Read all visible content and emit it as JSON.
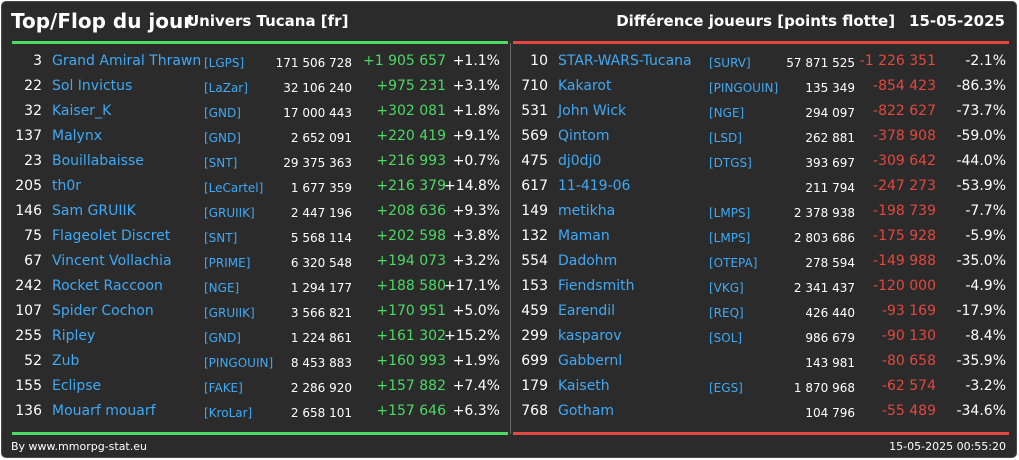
{
  "header": {
    "title": "Top/Flop du jour",
    "universe": "Univers Tucana [fr]",
    "metric": "Différence joueurs [points flotte]",
    "date": "15-05-2025"
  },
  "colors": {
    "background": "#2b2b2b",
    "top_accent": "#4cd964",
    "flop_accent": "#e2483f",
    "name_color": "#3fa9f5"
  },
  "top": [
    {
      "rank": "3",
      "name": "Grand Amiral Thrawn",
      "guild": "[LGPS]",
      "score": "171 506 728",
      "diff": "+1 905 657",
      "pct": "+1.1%"
    },
    {
      "rank": "22",
      "name": "Sol Invictus",
      "guild": "[LaZar]",
      "score": "32 106 240",
      "diff": "+975 231",
      "pct": "+3.1%"
    },
    {
      "rank": "32",
      "name": "Kaiser_K",
      "guild": "[GND]",
      "score": "17 000 443",
      "diff": "+302 081",
      "pct": "+1.8%"
    },
    {
      "rank": "137",
      "name": "Malynx",
      "guild": "[GND]",
      "score": "2 652 091",
      "diff": "+220 419",
      "pct": "+9.1%"
    },
    {
      "rank": "23",
      "name": "Bouillabaisse",
      "guild": "[SNT]",
      "score": "29 375 363",
      "diff": "+216 993",
      "pct": "+0.7%"
    },
    {
      "rank": "205",
      "name": "th0r",
      "guild": "[LeCartel]",
      "score": "1 677 359",
      "diff": "+216 379",
      "pct": "+14.8%"
    },
    {
      "rank": "146",
      "name": "Sam GRUIIK",
      "guild": "[GRUIIK]",
      "score": "2 447 196",
      "diff": "+208 636",
      "pct": "+9.3%"
    },
    {
      "rank": "75",
      "name": "Flageolet Discret",
      "guild": "[SNT]",
      "score": "5 568 114",
      "diff": "+202 598",
      "pct": "+3.8%"
    },
    {
      "rank": "67",
      "name": "Vincent Vollachia",
      "guild": "[PRIME]",
      "score": "6 320 548",
      "diff": "+194 073",
      "pct": "+3.2%"
    },
    {
      "rank": "242",
      "name": "Rocket Raccoon",
      "guild": "[NGE]",
      "score": "1 294 177",
      "diff": "+188 580",
      "pct": "+17.1%"
    },
    {
      "rank": "107",
      "name": "Spider Cochon",
      "guild": "[GRUIIK]",
      "score": "3 566 821",
      "diff": "+170 951",
      "pct": "+5.0%"
    },
    {
      "rank": "255",
      "name": "Ripley",
      "guild": "[GND]",
      "score": "1 224 861",
      "diff": "+161 302",
      "pct": "+15.2%"
    },
    {
      "rank": "52",
      "name": "Zub",
      "guild": "[PINGOUIN]",
      "score": "8 453 883",
      "diff": "+160 993",
      "pct": "+1.9%"
    },
    {
      "rank": "155",
      "name": "Eclipse",
      "guild": "[FAKE]",
      "score": "2 286 920",
      "diff": "+157 882",
      "pct": "+7.4%"
    },
    {
      "rank": "136",
      "name": "Mouarf mouarf",
      "guild": "[KroLar]",
      "score": "2 658 101",
      "diff": "+157 646",
      "pct": "+6.3%"
    }
  ],
  "flop": [
    {
      "rank": "10",
      "name": "STAR-WARS-Tucana",
      "guild": "[SURV]",
      "score": "57 871 525",
      "diff": "-1 226 351",
      "pct": "-2.1%"
    },
    {
      "rank": "710",
      "name": "Kakarot",
      "guild": "[PINGOUIN]",
      "score": "135 349",
      "diff": "-854 423",
      "pct": "-86.3%"
    },
    {
      "rank": "531",
      "name": "John Wick",
      "guild": "[NGE]",
      "score": "294 097",
      "diff": "-822 627",
      "pct": "-73.7%"
    },
    {
      "rank": "569",
      "name": "Qintom",
      "guild": "[LSD]",
      "score": "262 881",
      "diff": "-378 908",
      "pct": "-59.0%"
    },
    {
      "rank": "475",
      "name": "dj0dj0",
      "guild": "[DTGS]",
      "score": "393 697",
      "diff": "-309 642",
      "pct": "-44.0%"
    },
    {
      "rank": "617",
      "name": "11-419-06",
      "guild": "",
      "score": "211 794",
      "diff": "-247 273",
      "pct": "-53.9%"
    },
    {
      "rank": "149",
      "name": "metikha",
      "guild": "[LMPS]",
      "score": "2 378 938",
      "diff": "-198 739",
      "pct": "-7.7%"
    },
    {
      "rank": "132",
      "name": "Maman",
      "guild": "[LMPS]",
      "score": "2 803 686",
      "diff": "-175 928",
      "pct": "-5.9%"
    },
    {
      "rank": "554",
      "name": "Dadohm",
      "guild": "[OTEPA]",
      "score": "278 594",
      "diff": "-149 988",
      "pct": "-35.0%"
    },
    {
      "rank": "153",
      "name": "Fiendsmith",
      "guild": "[VKG]",
      "score": "2 341 437",
      "diff": "-120 000",
      "pct": "-4.9%"
    },
    {
      "rank": "459",
      "name": "Earendil",
      "guild": "[REQ]",
      "score": "426 440",
      "diff": "-93 169",
      "pct": "-17.9%"
    },
    {
      "rank": "299",
      "name": "kasparov",
      "guild": "[SOL]",
      "score": "986 679",
      "diff": "-90 130",
      "pct": "-8.4%"
    },
    {
      "rank": "699",
      "name": "Gabbernl",
      "guild": "",
      "score": "143 981",
      "diff": "-80 658",
      "pct": "-35.9%"
    },
    {
      "rank": "179",
      "name": "Kaiseth",
      "guild": "[EGS]",
      "score": "1 870 968",
      "diff": "-62 574",
      "pct": "-3.2%"
    },
    {
      "rank": "768",
      "name": "Gotham",
      "guild": "",
      "score": "104 796",
      "diff": "-55 489",
      "pct": "-34.6%"
    }
  ],
  "footer": {
    "source": "By www.mmorpg-stat.eu",
    "timestamp": "15-05-2025 00:55:20"
  }
}
